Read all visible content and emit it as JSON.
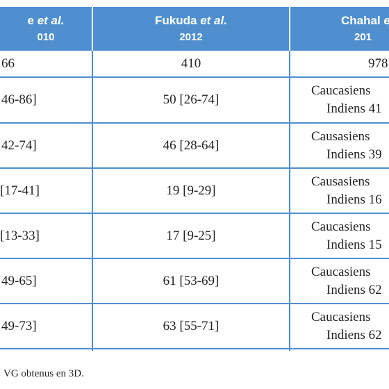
{
  "header": [
    {
      "name": "e",
      "italic": "et al.",
      "year": "010"
    },
    {
      "name": "Fukuda",
      "italic": "et al.",
      "year": "2012"
    },
    {
      "name": "Chahal",
      "italic": "et",
      "year": "201"
    }
  ],
  "table": {
    "rows": [
      [
        "66",
        "410",
        [
          "978"
        ]
      ],
      [
        "46-86]",
        "50 [26-74]",
        [
          "Caucasiens",
          "Indiens 41"
        ]
      ],
      [
        "42-74]",
        "46 [28-64]",
        [
          "Causasiens",
          "Indiens 39"
        ]
      ],
      [
        "[17-41]",
        "19 [9-29]",
        [
          "Causasiens",
          "Indiens 16"
        ]
      ],
      [
        "[13-33]",
        "17 [9-25]",
        [
          "Caucasiens",
          "Indiens 15"
        ]
      ],
      [
        "49-65]",
        "61 [53-69]",
        [
          "Caucasiens",
          "Indiens 62"
        ]
      ],
      [
        "49-73]",
        "63 [55-71]",
        [
          "Caucasiens",
          "Indiens 62"
        ]
      ]
    ]
  },
  "footnote": "VG obtenus en 3D."
}
